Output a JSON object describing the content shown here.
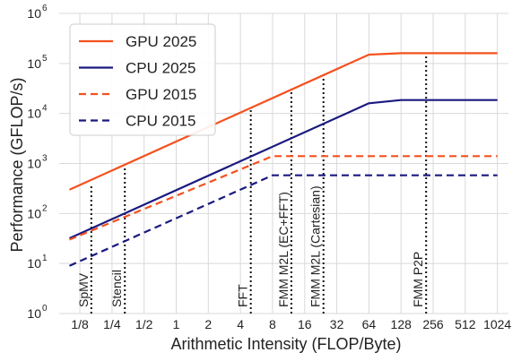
{
  "chart_data": {
    "type": "line",
    "title": "",
    "xlabel": "Arithmetic Intensity (FLOP/Byte)",
    "ylabel": "Performance (GFLOP/s)",
    "x_scale": "log2",
    "y_scale": "log10",
    "xlim": [
      0.08,
      1300
    ],
    "ylim": [
      1,
      1000000
    ],
    "x_ticks": [
      {
        "value": 0.125,
        "label": "1/8"
      },
      {
        "value": 0.25,
        "label": "1/4"
      },
      {
        "value": 0.5,
        "label": "1/2"
      },
      {
        "value": 1,
        "label": "1"
      },
      {
        "value": 2,
        "label": "2"
      },
      {
        "value": 4,
        "label": "4"
      },
      {
        "value": 8,
        "label": "8"
      },
      {
        "value": 16,
        "label": "16"
      },
      {
        "value": 32,
        "label": "32"
      },
      {
        "value": 64,
        "label": "64"
      },
      {
        "value": 128,
        "label": "128"
      },
      {
        "value": 256,
        "label": "256"
      },
      {
        "value": 512,
        "label": "512"
      },
      {
        "value": 1024,
        "label": "1024"
      }
    ],
    "y_ticks": [
      {
        "value": 1,
        "base": "10",
        "exp": "0"
      },
      {
        "value": 10,
        "base": "10",
        "exp": "1"
      },
      {
        "value": 100,
        "base": "10",
        "exp": "2"
      },
      {
        "value": 1000,
        "base": "10",
        "exp": "3"
      },
      {
        "value": 10000,
        "base": "10",
        "exp": "4"
      },
      {
        "value": 100000,
        "base": "10",
        "exp": "5"
      },
      {
        "value": 1000000,
        "base": "10",
        "exp": "6"
      }
    ],
    "grid": true,
    "legend_position": "top-left",
    "series": [
      {
        "name": "GPU 2025",
        "color": "#f4511e",
        "dash": "solid",
        "points": [
          [
            0.1,
            300
          ],
          [
            64,
            150000
          ],
          [
            128,
            160000
          ],
          [
            1024,
            160000
          ]
        ]
      },
      {
        "name": "CPU 2025",
        "color": "#1a1a80",
        "dash": "solid",
        "points": [
          [
            0.1,
            32
          ],
          [
            64,
            16000
          ],
          [
            128,
            18500
          ],
          [
            1024,
            18500
          ]
        ]
      },
      {
        "name": "GPU 2015",
        "color": "#f4511e",
        "dash": "dashed",
        "points": [
          [
            0.1,
            30
          ],
          [
            8,
            1400
          ],
          [
            1024,
            1400
          ]
        ]
      },
      {
        "name": "CPU 2015",
        "color": "#1a1a80",
        "dash": "dashed",
        "points": [
          [
            0.1,
            9
          ],
          [
            8,
            580
          ],
          [
            1024,
            580
          ]
        ]
      }
    ],
    "markers": [
      {
        "label": "SpMV",
        "x": 0.16,
        "y_top": 380
      },
      {
        "label": "Stencil",
        "x": 0.33,
        "y_top": 900
      },
      {
        "label": "FFT",
        "x": 5,
        "y_top": 12000
      },
      {
        "label": "FMM M2L (EC+FFT)",
        "x": 12,
        "y_top": 30000
      },
      {
        "label": "FMM M2L (Cartesian)",
        "x": 24,
        "y_top": 62000
      },
      {
        "label": "FMM P2P",
        "x": 220,
        "y_top": 160000
      }
    ]
  }
}
